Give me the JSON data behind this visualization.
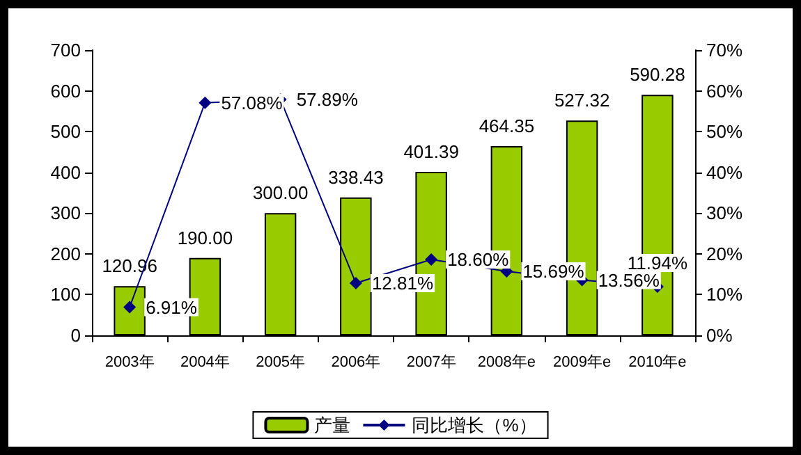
{
  "chart_data": {
    "type": "bar",
    "categories": [
      "2003年",
      "2004年",
      "2005年",
      "2006年",
      "2007年",
      "2008年e",
      "2009年e",
      "2010年e"
    ],
    "series": [
      {
        "name": "产量",
        "color": "#99cc00",
        "values": [
          120.96,
          190,
          300,
          338.43,
          401.39,
          464.35,
          527.32,
          590.28
        ],
        "value_labels": [
          "120.96",
          "190.00",
          "300.00",
          "338.43",
          "401.39",
          "464.35",
          "527.32",
          "590.28"
        ]
      },
      {
        "name": "同比增长（%）",
        "type": "line",
        "axis": "y2",
        "color": "#000080",
        "marker": "diamond",
        "values": [
          6.91,
          57.08,
          57.89,
          12.81,
          18.6,
          15.69,
          13.56,
          11.94
        ],
        "value_labels": [
          "6.91%",
          "57.08%",
          "57.89%",
          "12.81%",
          "18.60%",
          "15.69%",
          "13.56%",
          "11.94%"
        ]
      }
    ],
    "ylim": [
      0,
      700
    ],
    "yticks": [
      0,
      100,
      200,
      300,
      400,
      500,
      600,
      700
    ],
    "y2lim": [
      0,
      70
    ],
    "y2ticks": [
      {
        "value": 0,
        "label": "0%"
      },
      {
        "value": 10,
        "label": "10%"
      },
      {
        "value": 20,
        "label": "20%"
      },
      {
        "value": 30,
        "label": "30%"
      },
      {
        "value": 40,
        "label": "40%"
      },
      {
        "value": 50,
        "label": "50%"
      },
      {
        "value": 60,
        "label": "60%"
      },
      {
        "value": 70,
        "label": "70%"
      }
    ],
    "grid": false,
    "legend": "bottom"
  }
}
